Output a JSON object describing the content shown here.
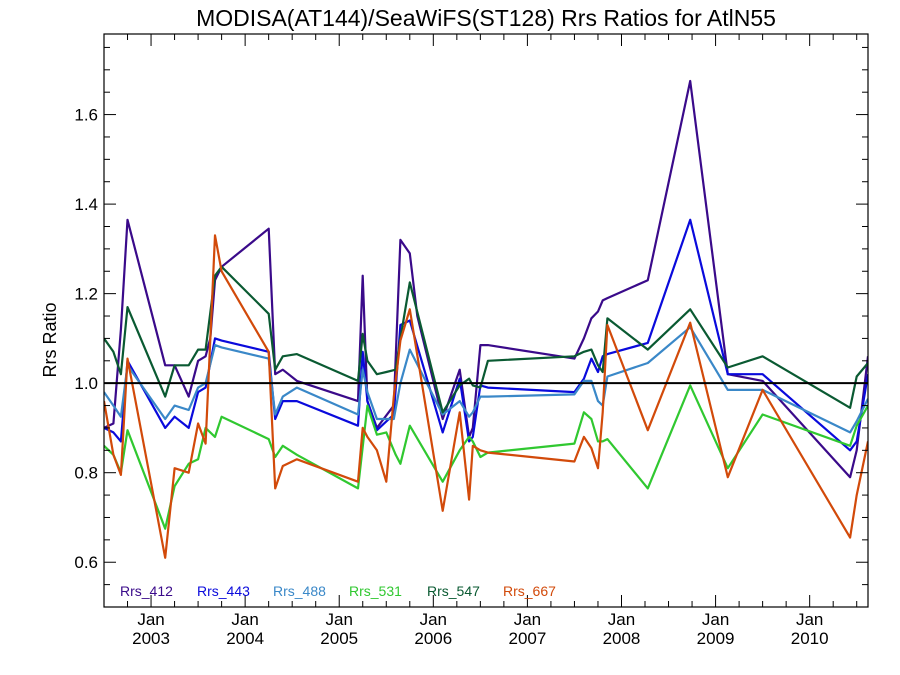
{
  "chart_data": {
    "type": "line",
    "title": "MODISA(AT144)/SeaWiFS(ST128)  Rrs Ratios for AtlN55",
    "ylabel": "Rrs Ratio",
    "xlabel": "",
    "xlim": [
      2002.5,
      2010.62
    ],
    "ylim": [
      0.5,
      1.78
    ],
    "yticks": [
      0.6,
      0.8,
      1.0,
      1.2,
      1.4,
      1.6
    ],
    "ytick_labels": [
      "0.6",
      "0.8",
      "1.0",
      "1.2",
      "1.4",
      "1.6"
    ],
    "xticks": [
      {
        "x": 2003.0,
        "line1": "Jan",
        "line2": "2003"
      },
      {
        "x": 2004.0,
        "line1": "Jan",
        "line2": "2004"
      },
      {
        "x": 2005.0,
        "line1": "Jan",
        "line2": "2005"
      },
      {
        "x": 2006.0,
        "line1": "Jan",
        "line2": "2006"
      },
      {
        "x": 2007.0,
        "line1": "Jan",
        "line2": "2007"
      },
      {
        "x": 2008.0,
        "line1": "Jan",
        "line2": "2008"
      },
      {
        "x": 2009.0,
        "line1": "Jan",
        "line2": "2009"
      },
      {
        "x": 2010.0,
        "line1": "Jan",
        "line2": "2010"
      }
    ],
    "reference_line": 1.0,
    "grid": false,
    "legend_position": "bottom-left, inside plot",
    "series": [
      {
        "name": "Rrs_412",
        "color": "#3a0a8a",
        "x": [
          2002.5,
          2002.6,
          2002.68,
          2002.75,
          2003.15,
          2003.25,
          2003.4,
          2003.5,
          2003.58,
          2003.63,
          2003.68,
          2003.75,
          2004.25,
          2004.32,
          2004.4,
          2004.55,
          2005.2,
          2005.25,
          2005.3,
          2005.4,
          2005.58,
          2005.65,
          2005.75,
          2005.83,
          2006.1,
          2006.28,
          2006.38,
          2006.42,
          2006.5,
          2006.58,
          2007.5,
          2007.6,
          2007.68,
          2007.75,
          2007.8,
          2007.85,
          2008.28,
          2008.73,
          2009.13,
          2009.5,
          2010.43,
          2010.5,
          2010.62
        ],
        "y": [
          0.9,
          0.91,
          1.12,
          1.365,
          1.04,
          1.04,
          0.97,
          1.05,
          1.06,
          1.1,
          1.23,
          1.26,
          1.345,
          1.02,
          1.03,
          1.005,
          0.96,
          1.24,
          0.96,
          0.9,
          0.95,
          1.32,
          1.29,
          1.15,
          0.92,
          1.03,
          0.88,
          0.9,
          1.085,
          1.085,
          1.055,
          1.1,
          1.145,
          1.16,
          1.185,
          1.19,
          1.23,
          1.675,
          1.02,
          1.005,
          0.79,
          0.85,
          1.06
        ]
      },
      {
        "name": "Rrs_443",
        "color": "#0a0adc",
        "x": [
          2002.5,
          2002.6,
          2002.68,
          2002.75,
          2003.15,
          2003.25,
          2003.4,
          2003.5,
          2003.58,
          2003.68,
          2003.75,
          2004.25,
          2004.32,
          2004.4,
          2004.55,
          2005.2,
          2005.25,
          2005.3,
          2005.4,
          2005.58,
          2005.65,
          2005.75,
          2006.1,
          2006.28,
          2006.38,
          2006.42,
          2006.5,
          2006.58,
          2007.5,
          2007.6,
          2007.68,
          2007.75,
          2007.8,
          2007.85,
          2008.28,
          2008.73,
          2009.13,
          2009.5,
          2010.43,
          2010.5,
          2010.62
        ],
        "y": [
          0.9,
          0.89,
          0.87,
          1.05,
          0.9,
          0.925,
          0.9,
          0.98,
          0.99,
          1.1,
          1.095,
          1.07,
          0.92,
          0.96,
          0.96,
          0.905,
          1.07,
          0.96,
          0.895,
          0.93,
          1.13,
          1.14,
          0.89,
          1.01,
          0.87,
          0.88,
          0.995,
          0.99,
          0.98,
          1.01,
          1.055,
          1.025,
          1.06,
          1.065,
          1.09,
          1.365,
          1.02,
          1.02,
          0.85,
          0.87,
          1.02
        ]
      },
      {
        "name": "Rrs_488",
        "color": "#3a88c8",
        "x": [
          2002.5,
          2002.6,
          2002.68,
          2002.75,
          2003.15,
          2003.25,
          2003.4,
          2003.5,
          2003.58,
          2003.68,
          2003.75,
          2004.25,
          2004.32,
          2004.4,
          2004.55,
          2005.2,
          2005.25,
          2005.3,
          2005.4,
          2005.58,
          2005.65,
          2005.75,
          2006.1,
          2006.28,
          2006.38,
          2006.42,
          2006.5,
          2006.58,
          2007.5,
          2007.6,
          2007.68,
          2007.75,
          2007.8,
          2007.85,
          2008.28,
          2008.73,
          2009.13,
          2009.5,
          2010.43,
          2010.5,
          2010.62
        ],
        "y": [
          0.98,
          0.95,
          0.925,
          1.04,
          0.92,
          0.95,
          0.94,
          0.99,
          1.0,
          1.085,
          1.08,
          1.055,
          0.93,
          0.97,
          0.99,
          0.93,
          1.03,
          0.98,
          0.92,
          0.92,
          1.0,
          1.075,
          0.93,
          0.96,
          0.925,
          0.935,
          0.97,
          0.97,
          0.975,
          1.005,
          1.005,
          0.96,
          0.95,
          1.015,
          1.045,
          1.125,
          0.985,
          0.985,
          0.89,
          0.915,
          0.965
        ]
      },
      {
        "name": "Rrs_531",
        "color": "#30c830",
        "x": [
          2002.5,
          2002.6,
          2002.68,
          2002.75,
          2003.15,
          2003.25,
          2003.4,
          2003.5,
          2003.58,
          2003.68,
          2003.75,
          2004.25,
          2004.32,
          2004.4,
          2004.55,
          2005.2,
          2005.3,
          2005.4,
          2005.5,
          2005.6,
          2005.65,
          2005.75,
          2006.1,
          2006.28,
          2006.38,
          2006.42,
          2006.5,
          2006.58,
          2007.5,
          2007.6,
          2007.68,
          2007.75,
          2007.8,
          2007.85,
          2008.28,
          2008.73,
          2009.13,
          2009.5,
          2010.43,
          2010.5,
          2010.62
        ],
        "y": [
          0.86,
          0.84,
          0.8,
          0.895,
          0.675,
          0.77,
          0.82,
          0.83,
          0.9,
          0.88,
          0.925,
          0.875,
          0.835,
          0.86,
          0.84,
          0.765,
          0.95,
          0.885,
          0.89,
          0.84,
          0.82,
          0.905,
          0.78,
          0.85,
          0.88,
          0.87,
          0.835,
          0.845,
          0.865,
          0.935,
          0.92,
          0.87,
          0.87,
          0.875,
          0.765,
          0.995,
          0.81,
          0.93,
          0.86,
          0.905,
          0.95
        ]
      },
      {
        "name": "Rrs_547",
        "color": "#0a5a32",
        "x": [
          2002.5,
          2002.6,
          2002.68,
          2002.75,
          2003.15,
          2003.25,
          2003.4,
          2003.5,
          2003.58,
          2003.68,
          2003.75,
          2004.25,
          2004.32,
          2004.4,
          2004.55,
          2005.2,
          2005.25,
          2005.3,
          2005.4,
          2005.5,
          2005.6,
          2005.65,
          2005.75,
          2006.1,
          2006.28,
          2006.38,
          2006.42,
          2006.5,
          2006.58,
          2007.5,
          2007.6,
          2007.68,
          2007.75,
          2007.8,
          2007.85,
          2008.28,
          2008.73,
          2009.13,
          2009.5,
          2010.43,
          2010.5,
          2010.62
        ],
        "y": [
          1.1,
          1.07,
          1.02,
          1.17,
          0.97,
          1.04,
          1.04,
          1.075,
          1.075,
          1.24,
          1.26,
          1.155,
          1.03,
          1.06,
          1.065,
          1.005,
          1.11,
          1.05,
          1.02,
          1.025,
          1.03,
          1.1,
          1.225,
          0.935,
          0.995,
          1.01,
          0.995,
          0.99,
          1.05,
          1.06,
          1.07,
          1.075,
          1.04,
          1.025,
          1.145,
          1.075,
          1.165,
          1.035,
          1.06,
          0.945,
          1.015,
          1.045
        ]
      },
      {
        "name": "Rrs_667",
        "color": "#d24a0a",
        "x": [
          2002.5,
          2002.6,
          2002.68,
          2002.75,
          2003.15,
          2003.25,
          2003.4,
          2003.5,
          2003.58,
          2003.68,
          2003.75,
          2004.25,
          2004.32,
          2004.4,
          2004.55,
          2005.2,
          2005.25,
          2005.3,
          2005.4,
          2005.5,
          2005.58,
          2005.65,
          2005.75,
          2006.1,
          2006.28,
          2006.38,
          2006.42,
          2006.5,
          2006.58,
          2007.5,
          2007.6,
          2007.68,
          2007.75,
          2007.8,
          2007.85,
          2008.28,
          2008.73,
          2009.13,
          2009.5,
          2010.43,
          2010.5,
          2010.62
        ],
        "y": [
          0.96,
          0.84,
          0.795,
          1.055,
          0.61,
          0.81,
          0.8,
          0.91,
          0.865,
          1.33,
          1.25,
          1.07,
          0.765,
          0.815,
          0.83,
          0.78,
          0.9,
          0.88,
          0.85,
          0.78,
          0.97,
          1.095,
          1.165,
          0.715,
          0.935,
          0.74,
          0.86,
          0.85,
          0.845,
          0.825,
          0.88,
          0.855,
          0.81,
          0.935,
          1.13,
          0.895,
          1.135,
          0.79,
          0.985,
          0.655,
          0.75,
          0.87
        ]
      }
    ]
  }
}
